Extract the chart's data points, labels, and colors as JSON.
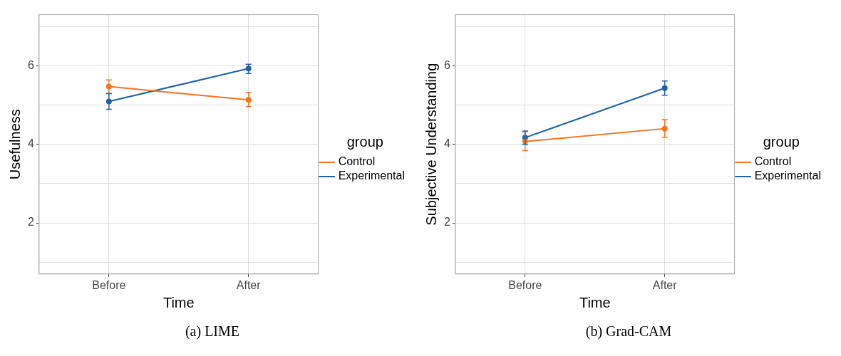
{
  "chart_data": [
    {
      "type": "line",
      "title": "(a) LIME",
      "xlabel": "Time",
      "ylabel": "Usefulness",
      "legend_title": "group",
      "legend": "right",
      "grid": true,
      "marker": "circle",
      "categories": [
        "Before",
        "After"
      ],
      "ylim": [
        0.7,
        7.3
      ],
      "yticks": [
        {
          "value": 1,
          "label": null
        },
        2,
        {
          "value": 3,
          "label": null
        },
        4,
        {
          "value": 5,
          "label": null
        },
        6,
        {
          "value": 7,
          "label": null
        }
      ],
      "series": [
        {
          "name": "Control",
          "color": "#f8731e",
          "values": [
            5.47,
            5.13
          ],
          "errors": [
            [
              5.3,
              5.64
            ],
            [
              4.96,
              5.32
            ]
          ]
        },
        {
          "name": "Experimental",
          "color": "#1f62a5",
          "values": [
            5.09,
            5.93
          ],
          "errors": [
            [
              4.89,
              5.29
            ],
            [
              5.8,
              6.04
            ]
          ]
        }
      ]
    },
    {
      "type": "line",
      "title": "(b) Grad-CAM",
      "xlabel": "Time",
      "ylabel": "Subjective Understanding",
      "legend_title": "group",
      "legend": "right",
      "grid": true,
      "marker": "circle",
      "categories": [
        "Before",
        "After"
      ],
      "ylim": [
        0.7,
        7.3
      ],
      "yticks": [
        {
          "value": 1,
          "label": null
        },
        2,
        {
          "value": 3,
          "label": null
        },
        4,
        {
          "value": 5,
          "label": null
        },
        6,
        {
          "value": 7,
          "label": null
        }
      ],
      "series": [
        {
          "name": "Control",
          "color": "#f8731e",
          "values": [
            4.07,
            4.4
          ],
          "errors": [
            [
              3.84,
              4.32
            ],
            [
              4.18,
              4.63
            ]
          ]
        },
        {
          "name": "Experimental",
          "color": "#1f62a5",
          "values": [
            4.17,
            5.43
          ],
          "errors": [
            [
              4.0,
              4.34
            ],
            [
              5.25,
              5.61
            ]
          ]
        }
      ]
    }
  ]
}
